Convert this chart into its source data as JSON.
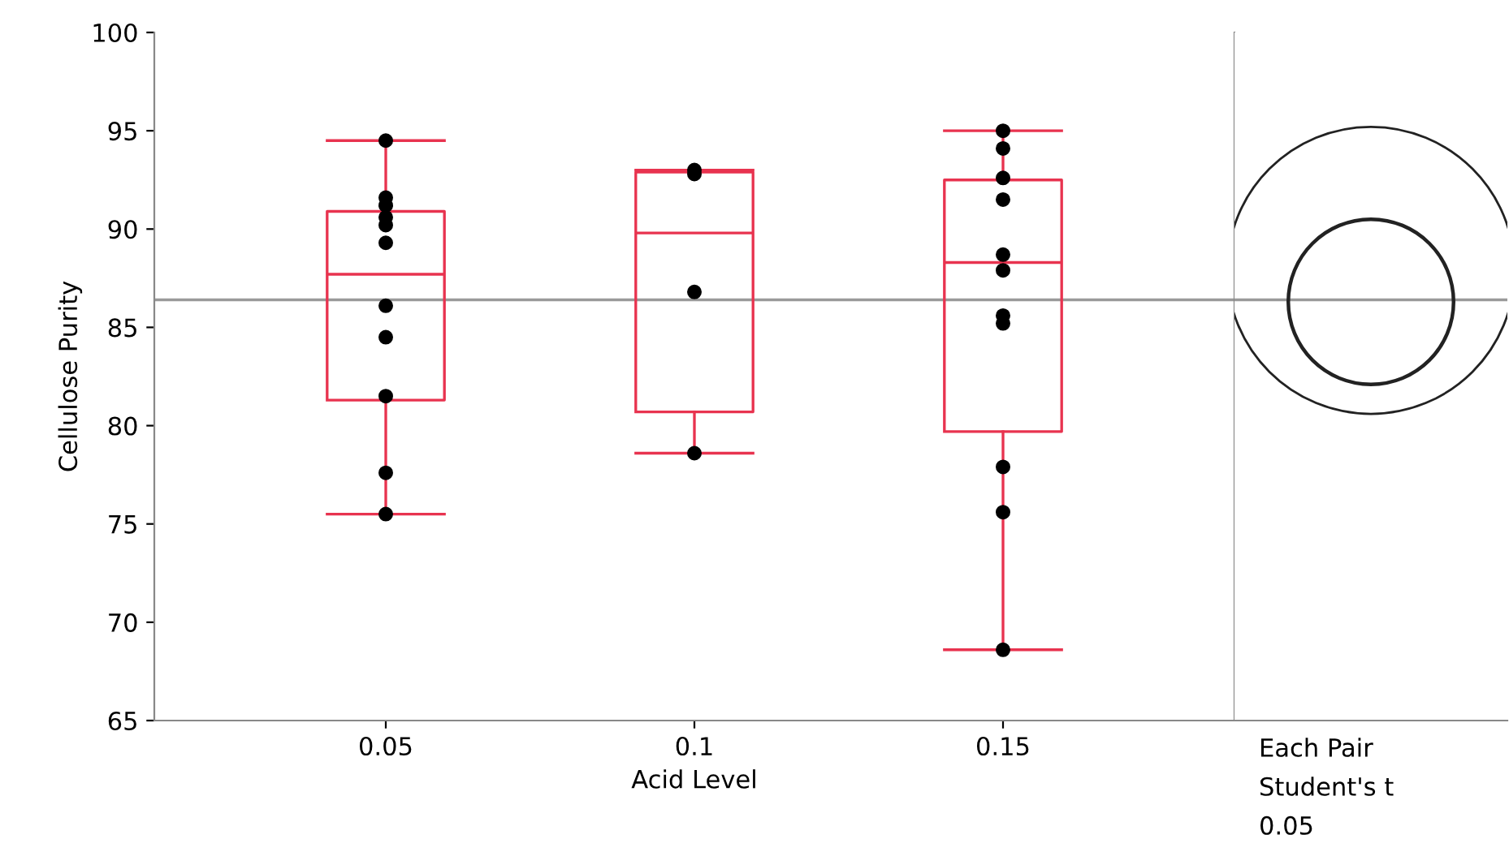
{
  "chart_data": {
    "type": "box",
    "xlabel": "Acid Level",
    "ylabel": "Cellulose Purity",
    "categories": [
      "0.05",
      "0.1",
      "0.15"
    ],
    "ylim": [
      65,
      100
    ],
    "yticks": [
      65,
      70,
      75,
      80,
      85,
      90,
      95,
      100
    ],
    "grid": false,
    "series": [
      {
        "type": "box",
        "color": "#e8334f",
        "boxes": [
          {
            "low": 75.5,
            "q1": 81.3,
            "median": 87.7,
            "q3": 90.9,
            "high": 94.5
          },
          {
            "low": 78.6,
            "q1": 80.7,
            "median": 89.8,
            "q3": 92.9,
            "high": 93.0
          },
          {
            "low": 68.6,
            "q1": 79.7,
            "median": 88.3,
            "q3": 92.5,
            "high": 95.0
          }
        ]
      },
      {
        "type": "scatter",
        "color": "#000000",
        "marker": "circle",
        "x": [
          "0.05",
          "0.05",
          "0.05",
          "0.05",
          "0.05",
          "0.05",
          "0.05",
          "0.05",
          "0.05",
          "0.05",
          "0.05",
          "0.1",
          "0.1",
          "0.1",
          "0.1",
          "0.15",
          "0.15",
          "0.15",
          "0.15",
          "0.15",
          "0.15",
          "0.15",
          "0.15",
          "0.15",
          "0.15",
          "0.15"
        ],
        "values": [
          94.5,
          91.6,
          91.2,
          90.6,
          90.2,
          89.3,
          86.1,
          84.5,
          81.5,
          77.6,
          75.5,
          93.0,
          92.8,
          86.8,
          78.6,
          95.0,
          94.1,
          92.6,
          91.5,
          88.7,
          87.9,
          85.6,
          85.2,
          77.9,
          75.6,
          68.6
        ]
      }
    ],
    "ref_lines": [
      {
        "axis": "y",
        "value": 86.4,
        "color": "#9a9a9a"
      }
    ],
    "annotations": [
      "Each Pair",
      "Student's t",
      "0.05"
    ]
  }
}
